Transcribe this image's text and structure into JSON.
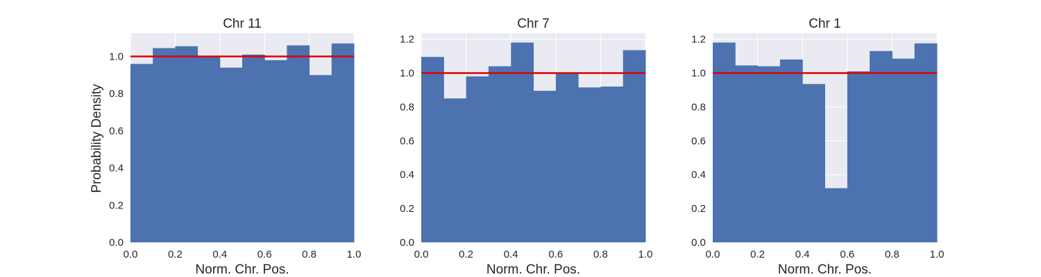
{
  "chart_data": [
    {
      "type": "bar",
      "title": "Chr 11",
      "xlabel": "Norm. Chr. Pos.",
      "ylabel": "Probability Density",
      "xlim": [
        0,
        1
      ],
      "ylim": [
        0,
        1.125
      ],
      "xticks": [
        "0.0",
        "0.2",
        "0.4",
        "0.6",
        "0.8",
        "1.0"
      ],
      "yticks": [
        "0.0",
        "0.2",
        "0.4",
        "0.6",
        "0.8",
        "1.0"
      ],
      "bin_edges": [
        0,
        0.1,
        0.2,
        0.3,
        0.4,
        0.5,
        0.6,
        0.7,
        0.8,
        0.9,
        1.0
      ],
      "values": [
        0.96,
        1.045,
        1.055,
        1.0,
        0.94,
        1.01,
        0.98,
        1.06,
        0.9,
        1.07
      ],
      "reference_line": 1.0,
      "grid": true
    },
    {
      "type": "bar",
      "title": "Chr 7",
      "xlabel": "Norm. Chr. Pos.",
      "ylabel": "",
      "xlim": [
        0,
        1
      ],
      "ylim": [
        0,
        1.235
      ],
      "xticks": [
        "0.0",
        "0.2",
        "0.4",
        "0.6",
        "0.8",
        "1.0"
      ],
      "yticks": [
        "0.0",
        "0.2",
        "0.4",
        "0.6",
        "0.8",
        "1.0",
        "1.2"
      ],
      "bin_edges": [
        0,
        0.1,
        0.2,
        0.3,
        0.4,
        0.5,
        0.6,
        0.7,
        0.8,
        0.9,
        1.0
      ],
      "values": [
        1.095,
        0.85,
        0.98,
        1.04,
        1.18,
        0.895,
        1.0,
        0.915,
        0.92,
        1.135
      ],
      "reference_line": 1.0,
      "grid": true
    },
    {
      "type": "bar",
      "title": "Chr 1",
      "xlabel": "Norm. Chr. Pos.",
      "ylabel": "",
      "xlim": [
        0,
        1
      ],
      "ylim": [
        0,
        1.235
      ],
      "xticks": [
        "0.0",
        "0.2",
        "0.4",
        "0.6",
        "0.8",
        "1.0"
      ],
      "yticks": [
        "0.0",
        "0.2",
        "0.4",
        "0.6",
        "0.8",
        "1.0",
        "1.2"
      ],
      "bin_edges": [
        0,
        0.1,
        0.2,
        0.3,
        0.4,
        0.5,
        0.6,
        0.7,
        0.8,
        0.9,
        1.0
      ],
      "values": [
        1.18,
        1.045,
        1.04,
        1.08,
        0.935,
        0.32,
        1.01,
        1.13,
        1.085,
        1.175
      ],
      "reference_line": 1.0,
      "grid": true
    }
  ],
  "colors": {
    "bar": "#4C72B0",
    "plot_background": "#EAEAF2",
    "grid": "#FFFFFF",
    "reference_line": "#E00000"
  }
}
